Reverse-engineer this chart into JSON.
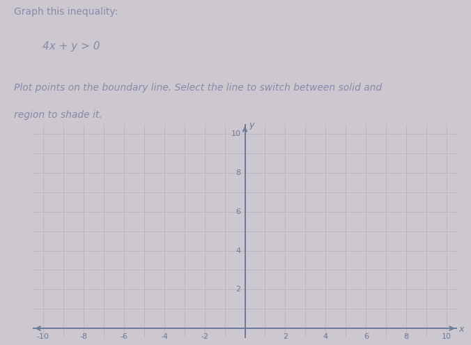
{
  "title_line1": "Graph this inequality:",
  "inequality": "4x + y > 0",
  "instruction_line1": "Plot points on the boundary line. Select the line to switch between solid and",
  "instruction_line2": "region to shade it.",
  "xlim": [
    -10,
    10
  ],
  "ylim": [
    0,
    10
  ],
  "xlabel": "x",
  "ylabel": "y",
  "xticks": [
    -10,
    -8,
    -6,
    -4,
    -2,
    2,
    4,
    6,
    8,
    10
  ],
  "yticks": [
    2,
    4,
    6,
    8,
    10
  ],
  "bg_color": "#cdc8cf",
  "grid_color": "#b8b4be",
  "axis_color": "#6a7a9a",
  "text_color": "#888aaa",
  "title_fontsize": 10,
  "inequality_fontsize": 11,
  "instruction_fontsize": 10
}
